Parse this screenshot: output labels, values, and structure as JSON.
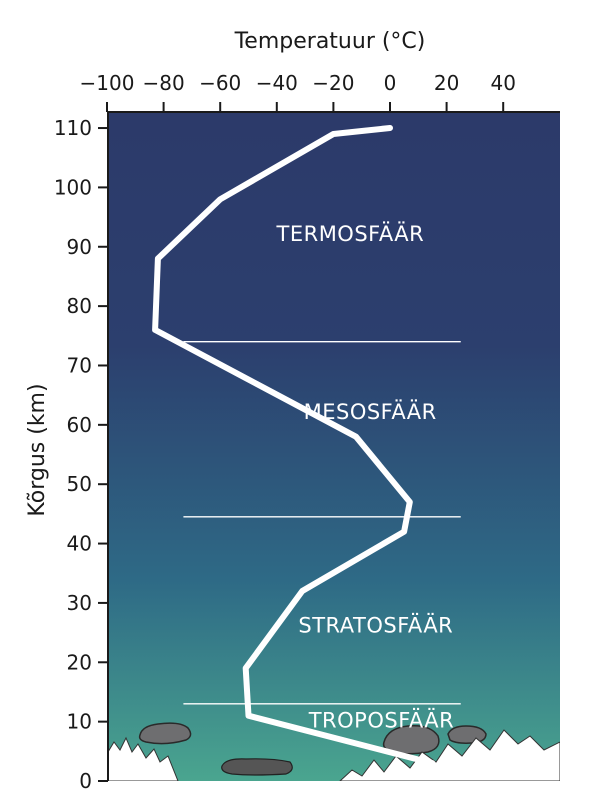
{
  "chart_data": {
    "type": "line",
    "xlabel": "Temperatuur (°C)",
    "ylabel": "Kõrgus (km)",
    "xlim": [
      -100,
      60
    ],
    "ylim": [
      0,
      112
    ],
    "x_axis_position": "top",
    "x_ticks": [
      -100,
      -80,
      -60,
      -40,
      -20,
      0,
      20,
      40
    ],
    "x_tick_labels": [
      "−100",
      "−80",
      "−60",
      "−40",
      "−20",
      "0",
      "20",
      "40"
    ],
    "y_ticks": [
      0,
      10,
      20,
      30,
      40,
      50,
      60,
      70,
      80,
      90,
      100,
      110
    ],
    "y_tick_labels": [
      "0",
      "10",
      "20",
      "30",
      "40",
      "50",
      "60",
      "70",
      "80",
      "90",
      "100",
      "110"
    ],
    "grid": false,
    "series": [
      {
        "x": [
          15,
          -50,
          -51,
          -31,
          5,
          7,
          -12,
          -83,
          -82,
          -60,
          -20,
          0
        ],
        "y": [
          3,
          11,
          19,
          32,
          42,
          47,
          58,
          76,
          88,
          98,
          109,
          110
        ],
        "color": "#ffffff"
      }
    ],
    "layer_boundaries": [
      {
        "altitude": 13,
        "x_range": [
          -73,
          25
        ]
      },
      {
        "altitude": 44.5,
        "x_range": [
          -73,
          25
        ]
      },
      {
        "altitude": 74,
        "x_range": [
          -73,
          25
        ]
      }
    ],
    "annotations": [
      {
        "text": "TERMOSFÄÄR",
        "x": -14,
        "y": 91
      },
      {
        "text": "MESOSFÄÄR",
        "x": -7,
        "y": 61
      },
      {
        "text": "STRATOSFÄÄR",
        "x": -5,
        "y": 25
      },
      {
        "text": "TROPOSFÄÄR",
        "x": -3,
        "y": 9
      }
    ],
    "colors": {
      "sky_top": "#2c3a6a",
      "sky_mid": "#2e6a86",
      "sky_bottom": "#4aa58f",
      "profile": "#ffffff",
      "boundary": "#ffffff",
      "cloud": "#6e6e70",
      "mountain": "#ffffff"
    }
  }
}
